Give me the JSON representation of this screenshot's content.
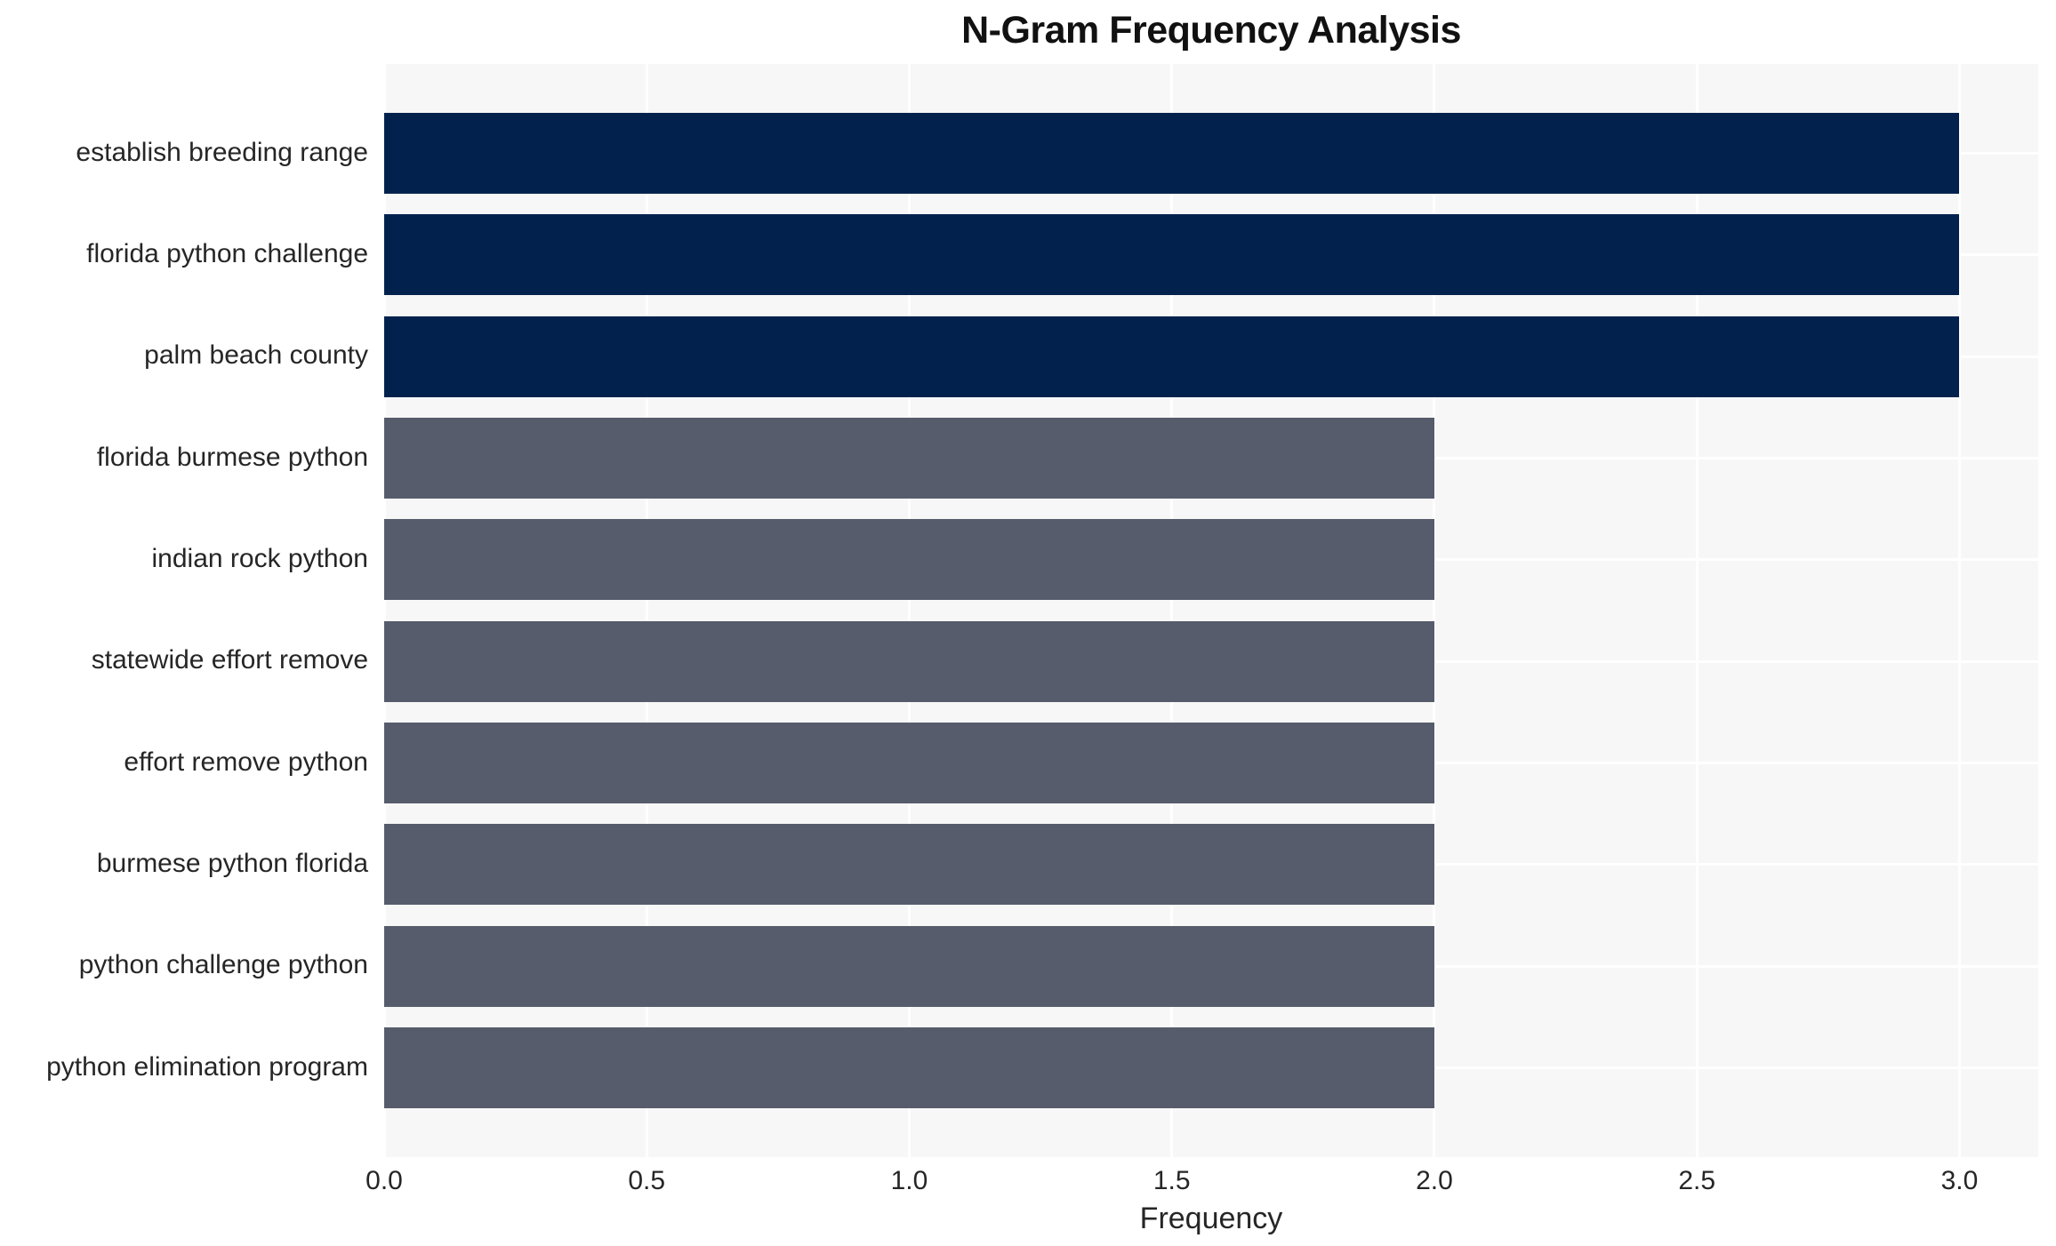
{
  "title": "N-Gram Frequency Analysis",
  "chart_data": {
    "type": "bar",
    "orientation": "horizontal",
    "title": "N-Gram Frequency Analysis",
    "xlabel": "Frequency",
    "ylabel": "",
    "categories": [
      "establish breeding range",
      "florida python challenge",
      "palm beach county",
      "florida burmese python",
      "indian rock python",
      "statewide effort remove",
      "effort remove python",
      "burmese python florida",
      "python challenge python",
      "python elimination program"
    ],
    "values": [
      3.0,
      3.0,
      3.0,
      2.0,
      2.0,
      2.0,
      2.0,
      2.0,
      2.0,
      2.0
    ],
    "bar_colors": [
      "#02224d",
      "#02224d",
      "#02224d",
      "#565c6b",
      "#565c6b",
      "#565c6b",
      "#565c6b",
      "#565c6b",
      "#565c6b",
      "#565c6b"
    ],
    "xticks": [
      0.0,
      0.5,
      1.0,
      1.5,
      2.0,
      2.5,
      3.0
    ],
    "xtick_labels": [
      "0.0",
      "0.5",
      "1.0",
      "1.5",
      "2.0",
      "2.5",
      "3.0"
    ],
    "xlim": [
      0,
      3.15
    ],
    "grid": true,
    "legend": null,
    "colors": {
      "bar_high": "#02224d",
      "bar_low": "#565c6b",
      "plot_background": "#f7f7f7",
      "gridline": "#ffffff",
      "tick_text": "#262626",
      "title_text": "#111111"
    }
  }
}
